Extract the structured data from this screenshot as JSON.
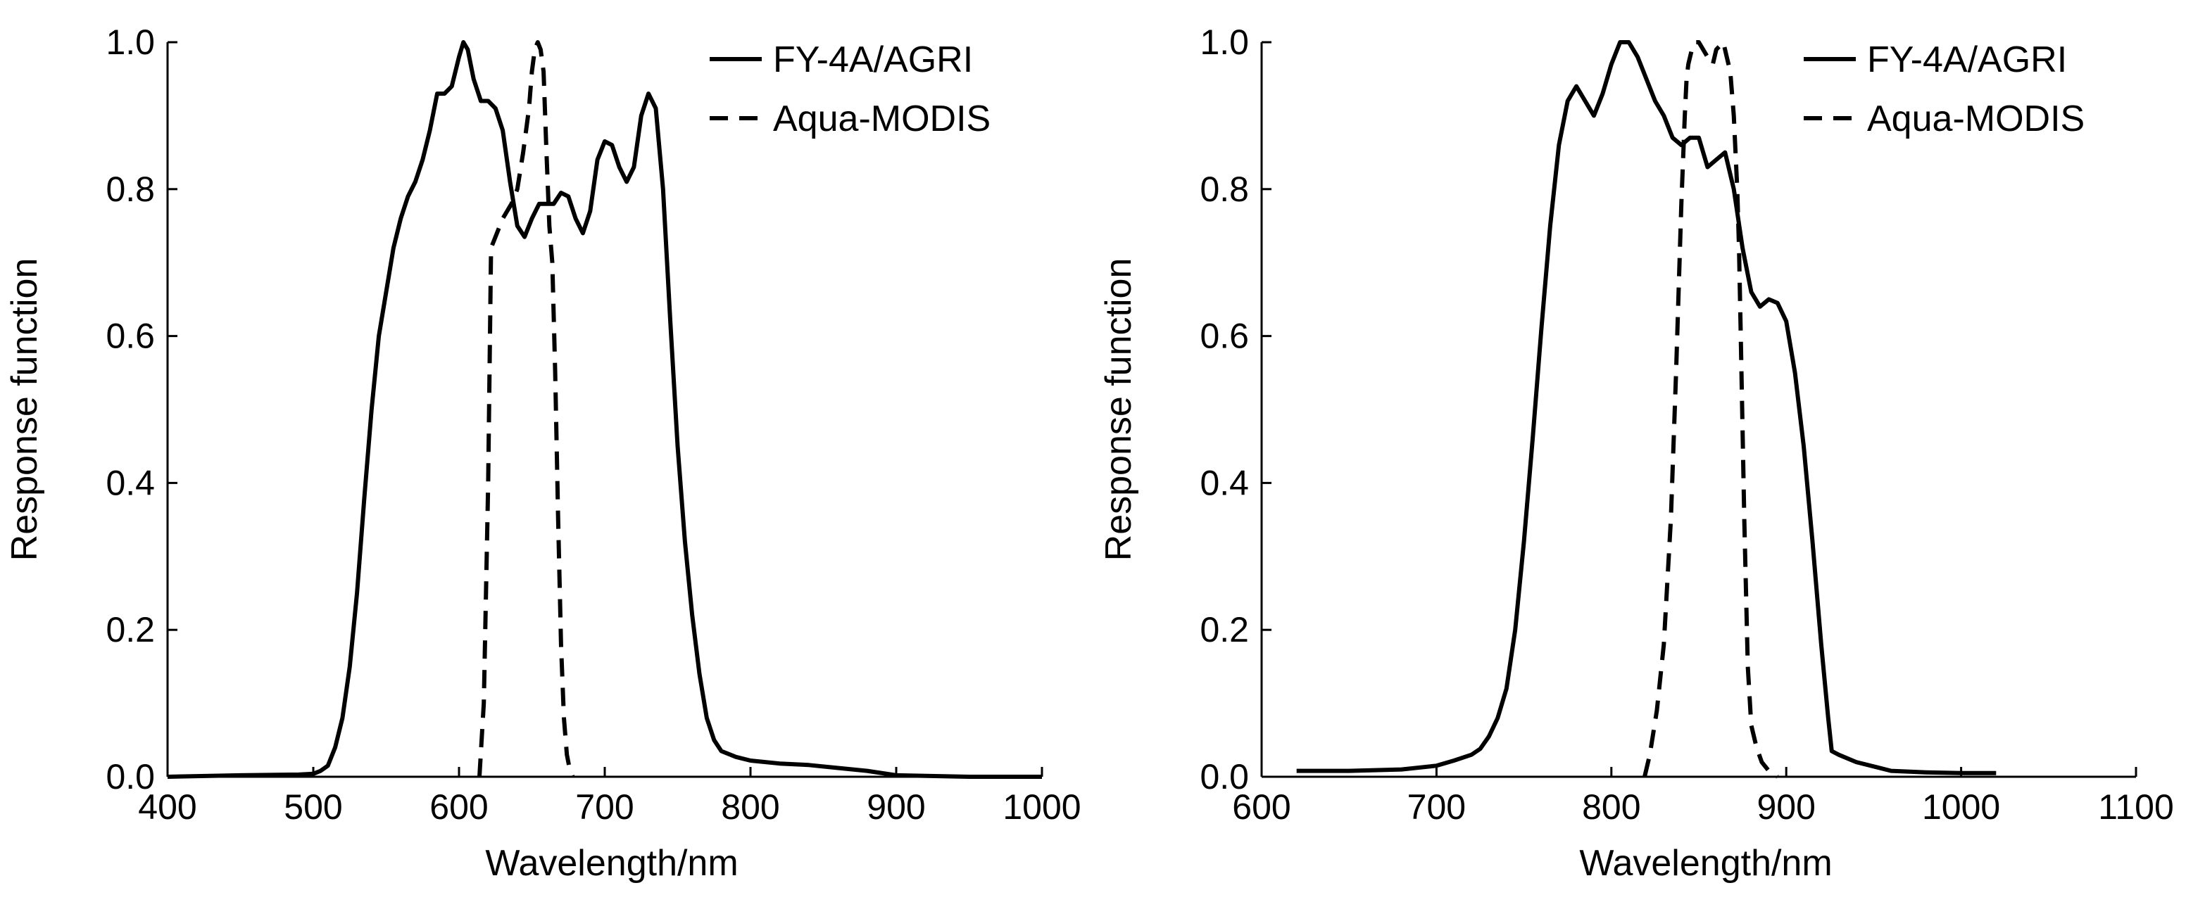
{
  "chart_data": [
    {
      "type": "line",
      "title": "",
      "xlabel": "Wavelength/nm",
      "ylabel": "Response function",
      "xlim": [
        400,
        1000
      ],
      "ylim": [
        0,
        1.0
      ],
      "xticks": [
        400,
        500,
        600,
        700,
        800,
        900,
        1000
      ],
      "xtick_labels": [
        "400",
        "500",
        "600",
        "700",
        "800",
        "900",
        "1000"
      ],
      "yticks": [
        0,
        0.2,
        0.4,
        0.6,
        0.8,
        1.0
      ],
      "ytick_labels": [
        "0.0",
        "0.2",
        "0.4",
        "0.6",
        "0.8",
        "1.0"
      ],
      "grid": false,
      "legend_position": "top-right",
      "series": [
        {
          "name": "FY-4A/AGRI",
          "style": "solid",
          "x": [
            400,
            450,
            490,
            500,
            505,
            510,
            515,
            520,
            525,
            530,
            535,
            540,
            545,
            550,
            555,
            560,
            565,
            570,
            575,
            580,
            585,
            590,
            595,
            600,
            603,
            606,
            610,
            615,
            620,
            625,
            630,
            635,
            640,
            645,
            650,
            655,
            660,
            665,
            670,
            675,
            680,
            685,
            690,
            695,
            700,
            705,
            710,
            715,
            720,
            725,
            730,
            735,
            740,
            745,
            750,
            755,
            760,
            765,
            770,
            775,
            780,
            790,
            800,
            820,
            840,
            860,
            880,
            900,
            950,
            1000
          ],
          "y": [
            0.0,
            0.002,
            0.003,
            0.004,
            0.008,
            0.015,
            0.04,
            0.08,
            0.15,
            0.25,
            0.38,
            0.5,
            0.6,
            0.66,
            0.72,
            0.76,
            0.79,
            0.81,
            0.84,
            0.88,
            0.93,
            0.93,
            0.94,
            0.98,
            1.0,
            0.99,
            0.95,
            0.92,
            0.92,
            0.91,
            0.88,
            0.81,
            0.75,
            0.735,
            0.76,
            0.78,
            0.78,
            0.78,
            0.795,
            0.79,
            0.76,
            0.74,
            0.77,
            0.84,
            0.865,
            0.86,
            0.83,
            0.81,
            0.83,
            0.9,
            0.93,
            0.91,
            0.8,
            0.62,
            0.45,
            0.32,
            0.22,
            0.14,
            0.08,
            0.05,
            0.035,
            0.027,
            0.022,
            0.018,
            0.016,
            0.012,
            0.008,
            0.002,
            0.0,
            0.0
          ]
        },
        {
          "name": "Aqua-MODIS",
          "style": "dashed",
          "x": [
            614,
            617,
            620,
            622,
            624,
            630,
            636,
            640,
            644,
            648,
            650,
            652,
            654,
            656,
            658,
            660,
            661,
            662,
            664,
            666,
            668,
            670,
            672,
            674,
            676,
            678
          ],
          "y": [
            0.0,
            0.1,
            0.4,
            0.72,
            0.73,
            0.76,
            0.78,
            0.8,
            0.85,
            0.91,
            0.96,
            0.99,
            1.0,
            0.99,
            0.96,
            0.85,
            0.8,
            0.75,
            0.7,
            0.55,
            0.35,
            0.18,
            0.08,
            0.03,
            0.01,
            0.0
          ]
        }
      ]
    },
    {
      "type": "line",
      "title": "",
      "xlabel": "Wavelength/nm",
      "ylabel": "Response function",
      "xlim": [
        600,
        1100
      ],
      "ylim": [
        0,
        1.0
      ],
      "xticks": [
        600,
        700,
        800,
        900,
        1000,
        1100
      ],
      "xtick_labels": [
        "600",
        "700",
        "800",
        "900",
        "1000",
        "1100"
      ],
      "yticks": [
        0,
        0.2,
        0.4,
        0.6,
        0.8,
        1.0
      ],
      "ytick_labels": [
        "0.0",
        "0.2",
        "0.4",
        "0.6",
        "0.8",
        "1.0"
      ],
      "grid": false,
      "legend_position": "top-right",
      "series": [
        {
          "name": "FY-4A/AGRI",
          "style": "solid",
          "x": [
            620,
            650,
            680,
            700,
            710,
            720,
            725,
            730,
            735,
            740,
            745,
            750,
            755,
            760,
            765,
            770,
            775,
            780,
            785,
            790,
            795,
            800,
            805,
            810,
            815,
            820,
            825,
            830,
            835,
            840,
            845,
            850,
            855,
            860,
            865,
            870,
            875,
            880,
            885,
            890,
            895,
            900,
            905,
            910,
            915,
            920,
            924,
            926,
            930,
            940,
            960,
            980,
            1000,
            1020
          ],
          "y": [
            0.008,
            0.008,
            0.01,
            0.015,
            0.022,
            0.03,
            0.038,
            0.055,
            0.08,
            0.12,
            0.2,
            0.32,
            0.46,
            0.61,
            0.75,
            0.86,
            0.92,
            0.94,
            0.92,
            0.9,
            0.93,
            0.97,
            1.0,
            1.0,
            0.98,
            0.95,
            0.92,
            0.9,
            0.87,
            0.86,
            0.87,
            0.87,
            0.83,
            0.84,
            0.85,
            0.8,
            0.72,
            0.66,
            0.64,
            0.65,
            0.645,
            0.62,
            0.55,
            0.45,
            0.32,
            0.18,
            0.08,
            0.035,
            0.03,
            0.02,
            0.008,
            0.006,
            0.005,
            0.005
          ]
        },
        {
          "name": "Aqua-MODIS",
          "style": "dashed",
          "x": [
            819,
            822,
            826,
            830,
            834,
            837,
            840,
            842,
            843,
            844,
            846,
            848,
            850,
            855,
            858,
            860,
            864,
            866,
            868,
            870,
            872,
            873,
            874,
            876,
            878,
            880,
            883,
            886,
            890,
            895
          ],
          "y": [
            0.0,
            0.03,
            0.09,
            0.18,
            0.35,
            0.55,
            0.78,
            0.9,
            0.95,
            0.97,
            0.99,
            1.0,
            1.0,
            0.98,
            0.97,
            0.99,
            1.0,
            0.98,
            0.96,
            0.9,
            0.8,
            0.72,
            0.6,
            0.35,
            0.15,
            0.07,
            0.04,
            0.02,
            0.008,
            0.0
          ]
        }
      ]
    }
  ]
}
